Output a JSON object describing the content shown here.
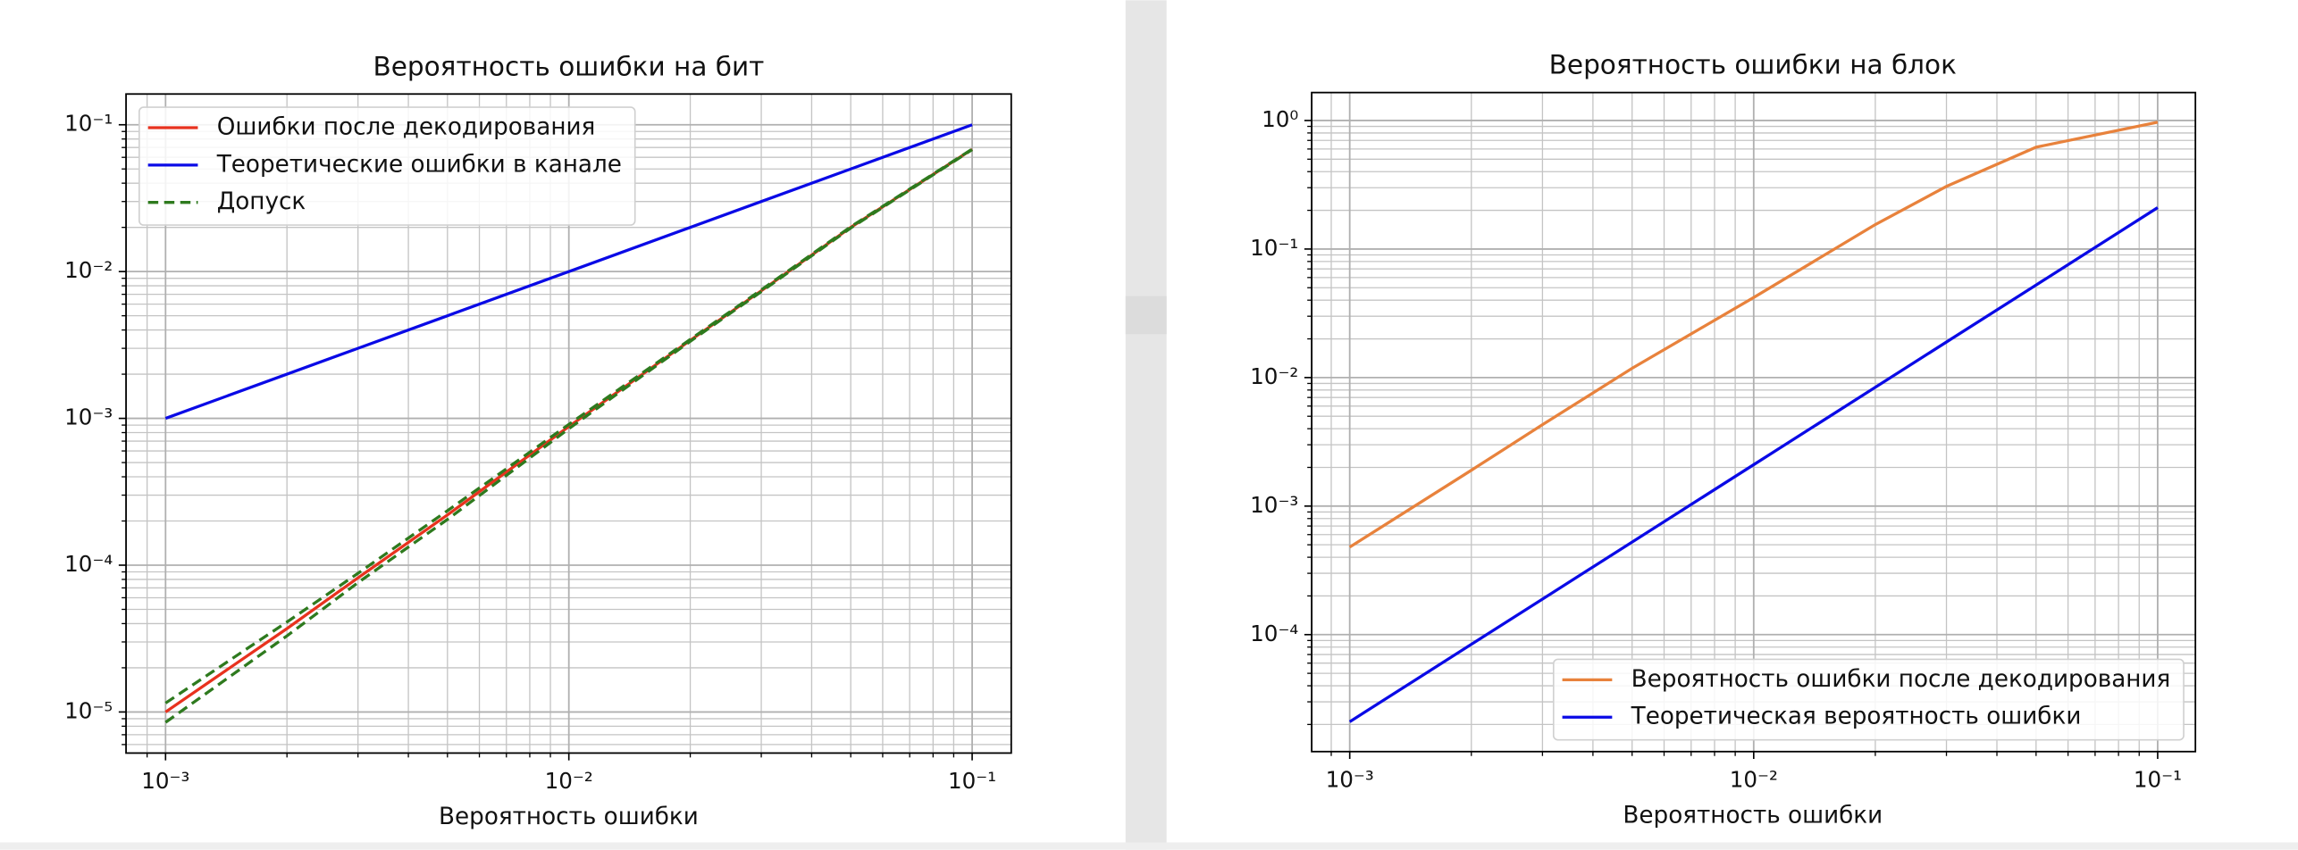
{
  "chart_data": [
    {
      "type": "line",
      "title": "Вероятность ошибки на бит",
      "x_label": "Вероятность ошибки",
      "xscale": "log",
      "yscale": "log",
      "grid": true,
      "legend": "upper left",
      "xlim": [
        0.000798,
        0.125
      ],
      "ylim": [
        5.25e-06,
        0.162
      ],
      "xticks": [
        {
          "value": 0.001,
          "label": "10⁻³"
        },
        {
          "value": 0.01,
          "label": "10⁻²"
        },
        {
          "value": 0.1,
          "label": "10⁻¹"
        }
      ],
      "yticks": [
        {
          "value": 1e-05,
          "label": "10⁻⁵"
        },
        {
          "value": 0.0001,
          "label": "10⁻⁴"
        },
        {
          "value": 0.001,
          "label": "10⁻³"
        },
        {
          "value": 0.01,
          "label": "10⁻²"
        },
        {
          "value": 0.1,
          "label": "10⁻¹"
        }
      ],
      "xminorticks": [
        0.0009,
        0.002,
        0.003,
        0.004,
        0.005,
        0.006,
        0.007,
        0.008,
        0.009,
        0.02,
        0.03,
        0.04,
        0.05,
        0.06,
        0.07,
        0.08,
        0.09
      ],
      "yminorticks": [
        6e-06,
        7e-06,
        8e-06,
        9e-06,
        2e-05,
        3e-05,
        4e-05,
        5e-05,
        6e-05,
        7e-05,
        8e-05,
        9e-05,
        0.0002,
        0.0003,
        0.0004,
        0.0005,
        0.0006,
        0.0007,
        0.0008,
        0.0009,
        0.002,
        0.003,
        0.004,
        0.005,
        0.006,
        0.007,
        0.008,
        0.009,
        0.02,
        0.03,
        0.04,
        0.05,
        0.06,
        0.07,
        0.08,
        0.09
      ],
      "x": [
        0.001,
        0.002,
        0.003,
        0.005,
        0.01,
        0.02,
        0.03,
        0.05,
        0.1
      ],
      "series": [
        {
          "name": "Ошибки после декодирования",
          "color": "#e8321e",
          "values": [
            1e-05,
            3.7e-05,
            8.2e-05,
            0.00022,
            0.00088,
            0.0034,
            0.0074,
            0.02,
            0.068
          ]
        },
        {
          "name": "Теоретические ошибки в канале",
          "color": "#0a0ae6",
          "values": [
            0.001,
            0.002,
            0.003,
            0.005,
            0.01,
            0.02,
            0.03,
            0.05,
            0.1
          ]
        },
        {
          "name": "Допуск",
          "color": "#2e7a1e",
          "dashed": true,
          "lower": [
            8.5e-06,
            3.3e-05,
            7.6e-05,
            0.000205,
            0.00085,
            0.00335,
            0.0073,
            0.0198,
            0.0677
          ],
          "upper": [
            1.15e-05,
            4.1e-05,
            8.8e-05,
            0.000235,
            0.00091,
            0.00345,
            0.0075,
            0.0202,
            0.0683
          ]
        }
      ]
    },
    {
      "type": "line",
      "title": "Вероятность ошибки на блок",
      "x_label": "Вероятность ошибки",
      "xscale": "log",
      "yscale": "log",
      "grid": true,
      "legend": "lower right",
      "xlim": [
        0.000805,
        0.124
      ],
      "ylim": [
        1.23e-05,
        1.65
      ],
      "xticks": [
        {
          "value": 0.001,
          "label": "10⁻³"
        },
        {
          "value": 0.01,
          "label": "10⁻²"
        },
        {
          "value": 0.1,
          "label": "10⁻¹"
        }
      ],
      "yticks": [
        {
          "value": 0.0001,
          "label": "10⁻⁴"
        },
        {
          "value": 0.001,
          "label": "10⁻³"
        },
        {
          "value": 0.01,
          "label": "10⁻²"
        },
        {
          "value": 0.1,
          "label": "10⁻¹"
        },
        {
          "value": 1,
          "label": "10⁰"
        }
      ],
      "xminorticks": [
        0.0009,
        0.002,
        0.003,
        0.004,
        0.005,
        0.006,
        0.007,
        0.008,
        0.009,
        0.02,
        0.03,
        0.04,
        0.05,
        0.06,
        0.07,
        0.08,
        0.09
      ],
      "yminorticks": [
        2e-05,
        3e-05,
        4e-05,
        5e-05,
        6e-05,
        7e-05,
        8e-05,
        9e-05,
        0.0002,
        0.0003,
        0.0004,
        0.0005,
        0.0006,
        0.0007,
        0.0008,
        0.0009,
        0.002,
        0.003,
        0.004,
        0.005,
        0.006,
        0.007,
        0.008,
        0.009,
        0.02,
        0.03,
        0.04,
        0.05,
        0.06,
        0.07,
        0.08,
        0.09,
        0.2,
        0.3,
        0.4,
        0.5,
        0.6,
        0.7,
        0.8,
        0.9
      ],
      "x": [
        0.001,
        0.002,
        0.003,
        0.005,
        0.01,
        0.02,
        0.03,
        0.05,
        0.1
      ],
      "series": [
        {
          "name": "Вероятность ошибки после декодирования",
          "color": "#e8823c",
          "values": [
            0.00048,
            0.0019,
            0.0043,
            0.0118,
            0.042,
            0.155,
            0.307,
            0.62,
            0.97
          ]
        },
        {
          "name": "Теоретическая вероятность ошибки",
          "color": "#0a0ae6",
          "values": [
            2.1e-05,
            8.4e-05,
            0.000189,
            0.000525,
            0.0021,
            0.0084,
            0.0189,
            0.0525,
            0.21
          ]
        }
      ]
    }
  ]
}
